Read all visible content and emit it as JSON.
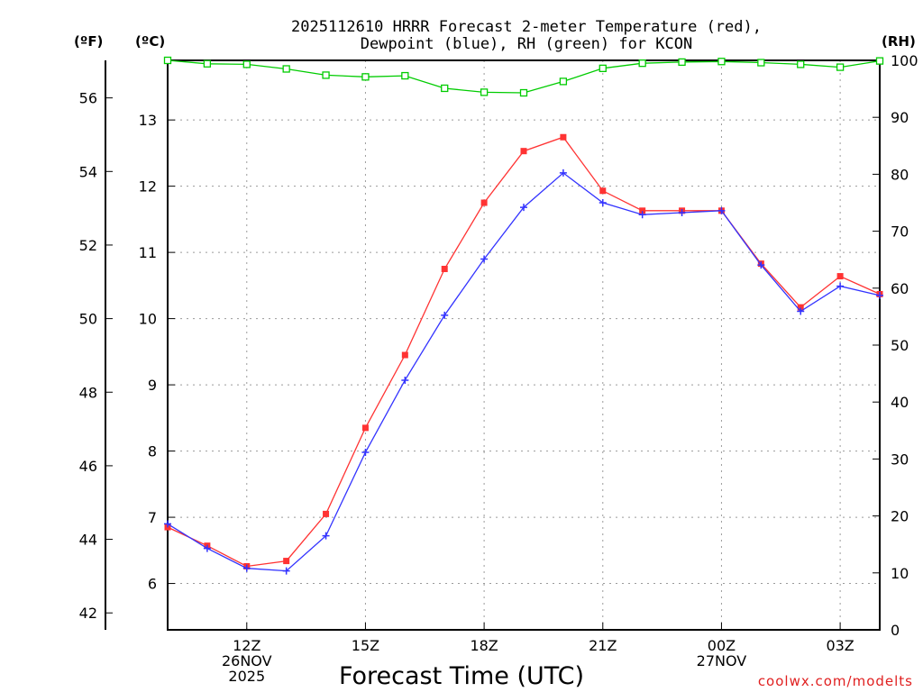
{
  "chart_data": {
    "type": "line",
    "title_line1": "2025112610 HRRR Forecast 2-meter Temperature (red),",
    "title_line2": "Dewpoint (blue), RH (green) for KCON",
    "xlabel": "Forecast Time (UTC)",
    "credit": "coolwx.com/modelts",
    "units": {
      "fahrenheit": "(ºF)",
      "celsius": "(ºC)",
      "rh": "(RH)"
    },
    "x_hours": [
      10,
      11,
      12,
      13,
      14,
      15,
      16,
      17,
      18,
      19,
      20,
      21,
      22,
      23,
      24,
      25,
      26,
      27,
      28
    ],
    "x_range": [
      10,
      28
    ],
    "x_ticks": [
      {
        "hour": 12,
        "lines": [
          "12Z",
          "26NOV",
          "2025"
        ]
      },
      {
        "hour": 15,
        "lines": [
          "15Z"
        ]
      },
      {
        "hour": 18,
        "lines": [
          "18Z"
        ]
      },
      {
        "hour": 21,
        "lines": [
          "21Z"
        ]
      },
      {
        "hour": 24,
        "lines": [
          "00Z",
          "27NOV"
        ]
      },
      {
        "hour": 27,
        "lines": [
          "03Z"
        ]
      }
    ],
    "celsius_range": [
      5.3,
      13.9
    ],
    "celsius_ticks": [
      6,
      7,
      8,
      9,
      10,
      11,
      12,
      13
    ],
    "fahrenheit_ticks": [
      42,
      44,
      46,
      48,
      50,
      52,
      54,
      56
    ],
    "rh_range": [
      0,
      100
    ],
    "rh_ticks": [
      0,
      10,
      20,
      30,
      40,
      50,
      60,
      70,
      80,
      90,
      100
    ],
    "series": [
      {
        "name": "Temperature",
        "color": "#ff3333",
        "marker": "square-filled",
        "axis": "celsius",
        "values": [
          6.85,
          6.57,
          6.26,
          6.34,
          7.05,
          8.35,
          9.45,
          10.75,
          11.75,
          12.53,
          12.74,
          11.93,
          11.63,
          11.63,
          11.63,
          10.83,
          10.17,
          10.64,
          10.37
        ]
      },
      {
        "name": "Dewpoint",
        "color": "#3333ff",
        "marker": "plus",
        "axis": "celsius",
        "values": [
          6.9,
          6.53,
          6.23,
          6.19,
          6.72,
          7.98,
          9.07,
          10.05,
          10.9,
          11.68,
          12.2,
          11.75,
          11.57,
          11.6,
          11.63,
          10.81,
          10.11,
          10.49,
          10.35
        ]
      },
      {
        "name": "RH",
        "color": "#00cc00",
        "marker": "square-open",
        "axis": "rh",
        "values": [
          100,
          99.4,
          99.3,
          98.5,
          97.4,
          97.1,
          97.3,
          95.1,
          94.4,
          94.3,
          96.3,
          98.6,
          99.5,
          99.7,
          99.8,
          99.6,
          99.3,
          98.8,
          99.9
        ]
      }
    ]
  }
}
